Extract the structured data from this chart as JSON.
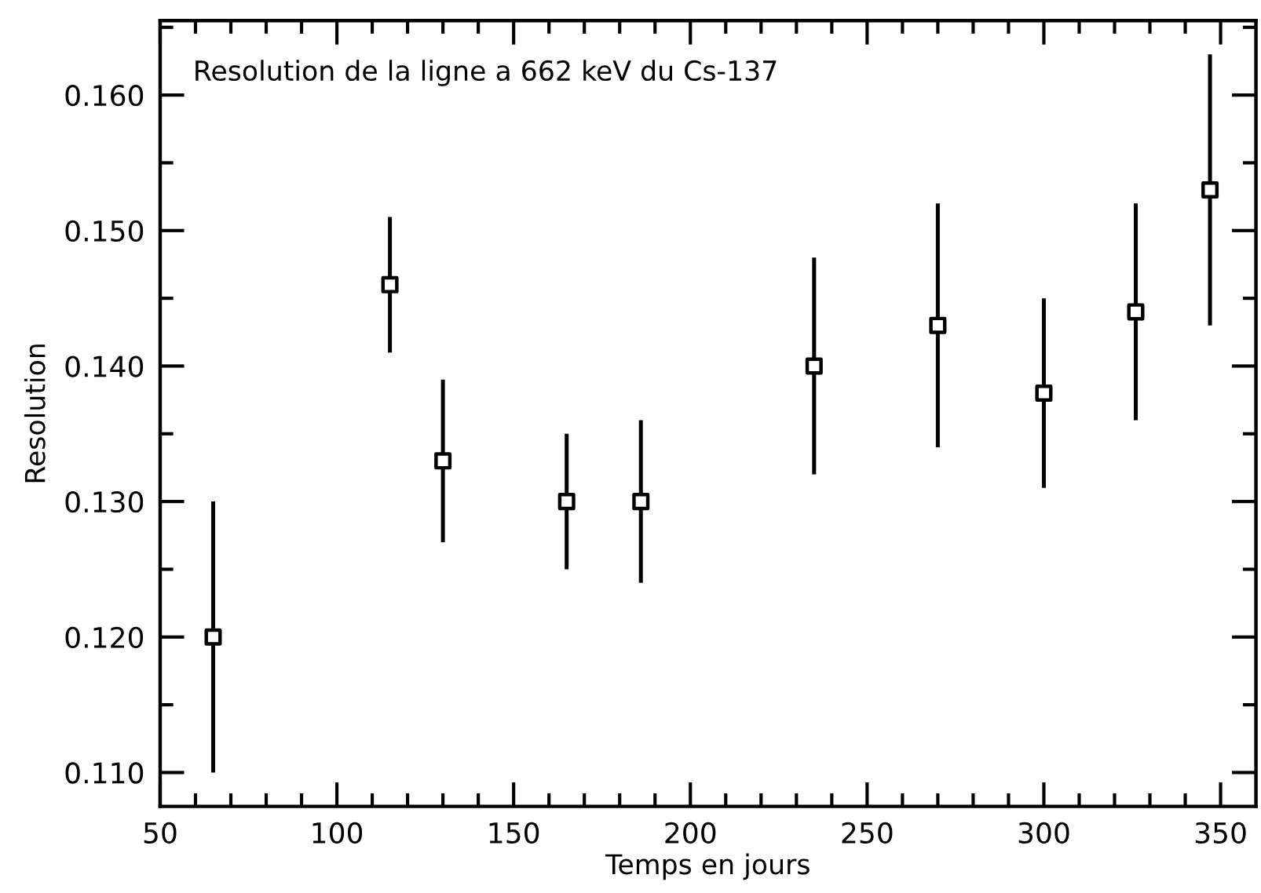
{
  "chart_data": {
    "type": "scatter",
    "title": "Resolution de la ligne a 662 keV du Cs-137",
    "xlabel": "Temps en jours",
    "ylabel": "Resolution",
    "x": [
      65,
      115,
      130,
      165,
      186,
      235,
      270,
      300,
      326,
      347
    ],
    "series": [
      {
        "color": "#000000",
        "values": [
          0.12,
          0.146,
          0.133,
          0.13,
          0.13,
          0.14,
          0.143,
          0.138,
          0.144,
          0.153
        ],
        "errors": [
          0.01,
          0.005,
          0.006,
          0.005,
          0.006,
          0.008,
          0.009,
          0.007,
          0.008,
          0.01
        ]
      }
    ],
    "marker": "square",
    "xlim": [
      50,
      360
    ],
    "xticks": [
      50,
      {
        "value": 60,
        "label": null
      },
      {
        "value": 70,
        "label": null
      },
      {
        "value": 80,
        "label": null
      },
      {
        "value": 90,
        "label": null
      },
      100,
      {
        "value": 110,
        "label": null
      },
      {
        "value": 120,
        "label": null
      },
      {
        "value": 130,
        "label": null
      },
      {
        "value": 140,
        "label": null
      },
      150,
      {
        "value": 160,
        "label": null
      },
      {
        "value": 170,
        "label": null
      },
      {
        "value": 180,
        "label": null
      },
      {
        "value": 190,
        "label": null
      },
      200,
      {
        "value": 210,
        "label": null
      },
      {
        "value": 220,
        "label": null
      },
      {
        "value": 230,
        "label": null
      },
      {
        "value": 240,
        "label": null
      },
      250,
      {
        "value": 260,
        "label": null
      },
      {
        "value": 270,
        "label": null
      },
      {
        "value": 280,
        "label": null
      },
      {
        "value": 290,
        "label": null
      },
      300,
      {
        "value": 310,
        "label": null
      },
      {
        "value": 320,
        "label": null
      },
      {
        "value": 330,
        "label": null
      },
      {
        "value": 340,
        "label": null
      },
      350
    ],
    "ylim": [
      0.1075,
      0.1655
    ],
    "yticks": [
      {
        "value": 0.11,
        "label": "0.110"
      },
      {
        "value": 0.115,
        "label": null
      },
      {
        "value": 0.12,
        "label": "0.120"
      },
      {
        "value": 0.125,
        "label": null
      },
      {
        "value": 0.13,
        "label": "0.130"
      },
      {
        "value": 0.135,
        "label": null
      },
      {
        "value": 0.14,
        "label": "0.140"
      },
      {
        "value": 0.145,
        "label": null
      },
      {
        "value": 0.15,
        "label": "0.150"
      },
      {
        "value": 0.155,
        "label": null
      },
      {
        "value": 0.16,
        "label": "0.160"
      },
      {
        "value": 0.165,
        "label": null
      }
    ]
  }
}
